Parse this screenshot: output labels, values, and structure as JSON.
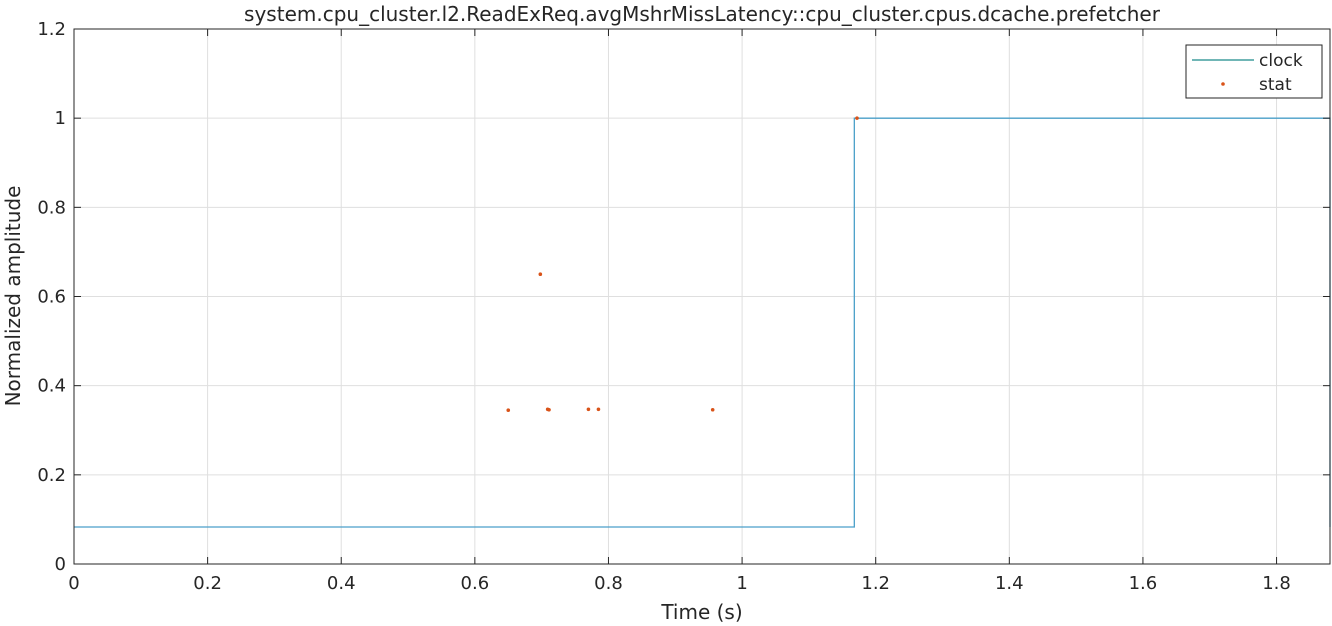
{
  "chart_data": {
    "type": "line",
    "title": "system.cpu_cluster.l2.ReadExReq.avgMshrMissLatency::cpu_cluster.cpus.dcache.prefetcher",
    "xlabel": "Time (s)",
    "ylabel": "Normalized amplitude",
    "xlim": [
      0,
      1.88
    ],
    "ylim": [
      0,
      1.2
    ],
    "xticks": [
      0,
      0.2,
      0.4,
      0.6,
      0.8,
      1,
      1.2,
      1.4,
      1.6,
      1.8
    ],
    "xtick_labels": [
      "0",
      "0.2",
      "0.4",
      "0.6",
      "0.8",
      "1",
      "1.2",
      "1.4",
      "1.6",
      "1.8"
    ],
    "yticks": [
      0,
      0.2,
      0.4,
      0.6,
      0.8,
      1,
      1.2
    ],
    "ytick_labels": [
      "0",
      "0.2",
      "0.4",
      "0.6",
      "0.8",
      "1",
      "1.2"
    ],
    "grid": true,
    "legend_position": "top-right",
    "series": [
      {
        "name": "clock",
        "style": "step-line",
        "color": "#4a9fc9",
        "legend_color": "#1a8a8a",
        "x": [
          0,
          1.168,
          1.168,
          1.88,
          1.88
        ],
        "y": [
          0.083,
          0.083,
          1.0,
          1.0,
          0.083
        ]
      },
      {
        "name": "stat",
        "style": "points",
        "color": "#d95319",
        "x": [
          0.65,
          0.698,
          0.709,
          0.711,
          0.77,
          0.785,
          0.956,
          1.172
        ],
        "y": [
          0.345,
          0.65,
          0.347,
          0.346,
          0.347,
          0.347,
          0.346,
          1.0
        ]
      }
    ]
  }
}
